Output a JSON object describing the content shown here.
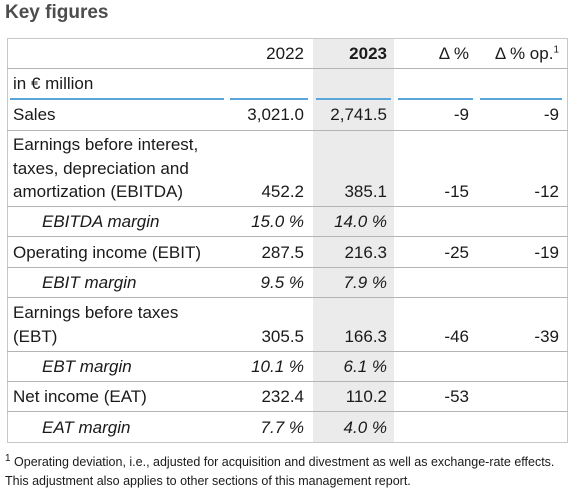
{
  "title": "Key figures",
  "header": {
    "col_2022": "2022",
    "col_2023": "2023",
    "col_delta": "Δ %",
    "col_delta_op": "Δ % op.",
    "col_delta_op_note": "1"
  },
  "unit": "in € million",
  "rows": [
    {
      "label": "Sales",
      "v2022": "3,021.0",
      "v2023": "2,741.5",
      "dp": "-9",
      "dop": "-9",
      "indent": false
    },
    {
      "label1": "Earnings before interest,",
      "label2": "taxes, depreciation and",
      "label3": "amortization (EBITDA)",
      "v2022": "452.2",
      "v2023": "385.1",
      "dp": "-15",
      "dop": "-12",
      "indent": false
    },
    {
      "label": "EBITDA margin",
      "v2022": "15.0 %",
      "v2023": "14.0 %",
      "dp": "",
      "dop": "",
      "indent": true
    },
    {
      "label": "Operating income (EBIT)",
      "v2022": "287.5",
      "v2023": "216.3",
      "dp": "-25",
      "dop": "-19",
      "indent": false
    },
    {
      "label": "EBIT margin",
      "v2022": "9.5 %",
      "v2023": "7.9 %",
      "dp": "",
      "dop": "",
      "indent": true
    },
    {
      "label1": "Earnings before taxes",
      "label2": "(EBT)",
      "v2022": "305.5",
      "v2023": "166.3",
      "dp": "-46",
      "dop": "-39",
      "indent": false
    },
    {
      "label": "EBT margin",
      "v2022": "10.1 %",
      "v2023": "6.1 %",
      "dp": "",
      "dop": "",
      "indent": true
    },
    {
      "label": "Net income (EAT)",
      "v2022": "232.4",
      "v2023": "110.2",
      "dp": "-53",
      "dop": "",
      "indent": false
    },
    {
      "label": "EAT margin",
      "v2022": "7.7 %",
      "v2023": "4.0 %",
      "dp": "",
      "dop": "",
      "indent": true
    }
  ],
  "footnote": {
    "marker": "1",
    "text": "Operating deviation, i.e., adjusted for acquisition and divestment as well as exchange-rate effects. This adjustment also applies to other sections of this management report."
  },
  "colors": {
    "accent_rule": "#5aa6da",
    "shade_2023": "#ebebeb",
    "title": "#4d4d4d"
  }
}
